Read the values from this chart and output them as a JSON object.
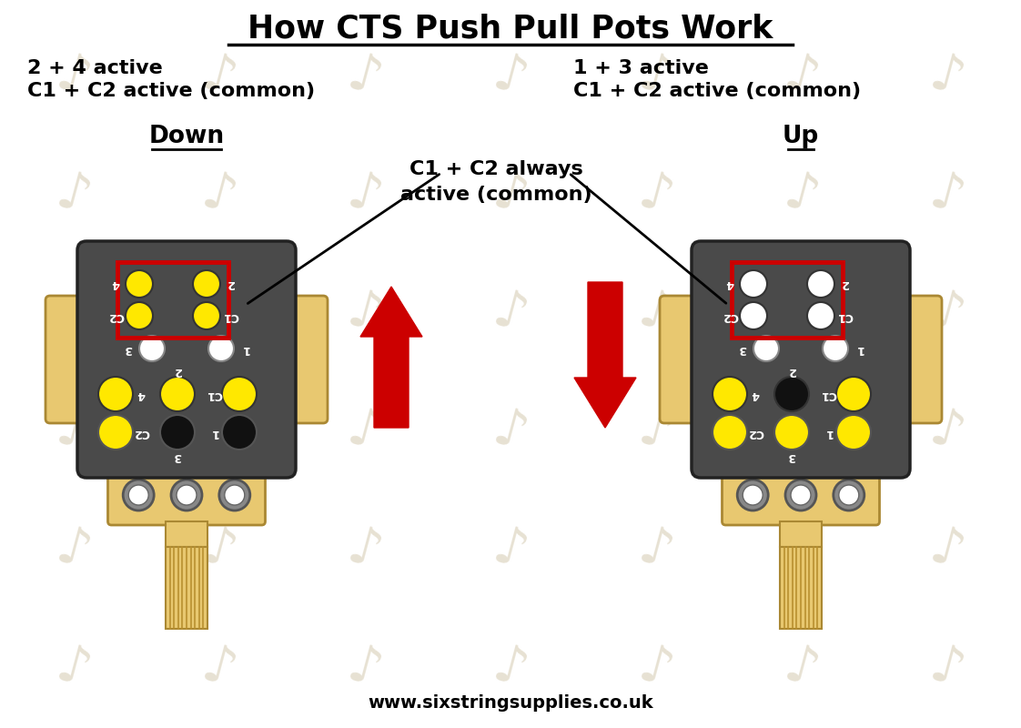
{
  "title": "How CTS Push Pull Pots Work",
  "bg_color": "#FFFFFF",
  "body_color": "#4A4A4A",
  "mount_color": "#E8C870",
  "stem_color": "#D4B050",
  "terminal_inner": "#FFFFFF",
  "yellow": "#FFE800",
  "white_dot": "#FFFFFF",
  "black_dot": "#111111",
  "red_box": "#CC0000",
  "arrow_color": "#CC0000",
  "text_color": "#000000",
  "white_label": "#FFFFFF",
  "website": "www.sixstringsupplies.co.uk",
  "down_label": "Down",
  "up_label": "Up",
  "down_desc1": "C1 + C2 active (common)",
  "down_desc2": "2 + 4 active",
  "up_desc1": "C1 + C2 active (common)",
  "up_desc2": "1 + 3 active",
  "callout": "C1 + C2 always\nactive (common)"
}
